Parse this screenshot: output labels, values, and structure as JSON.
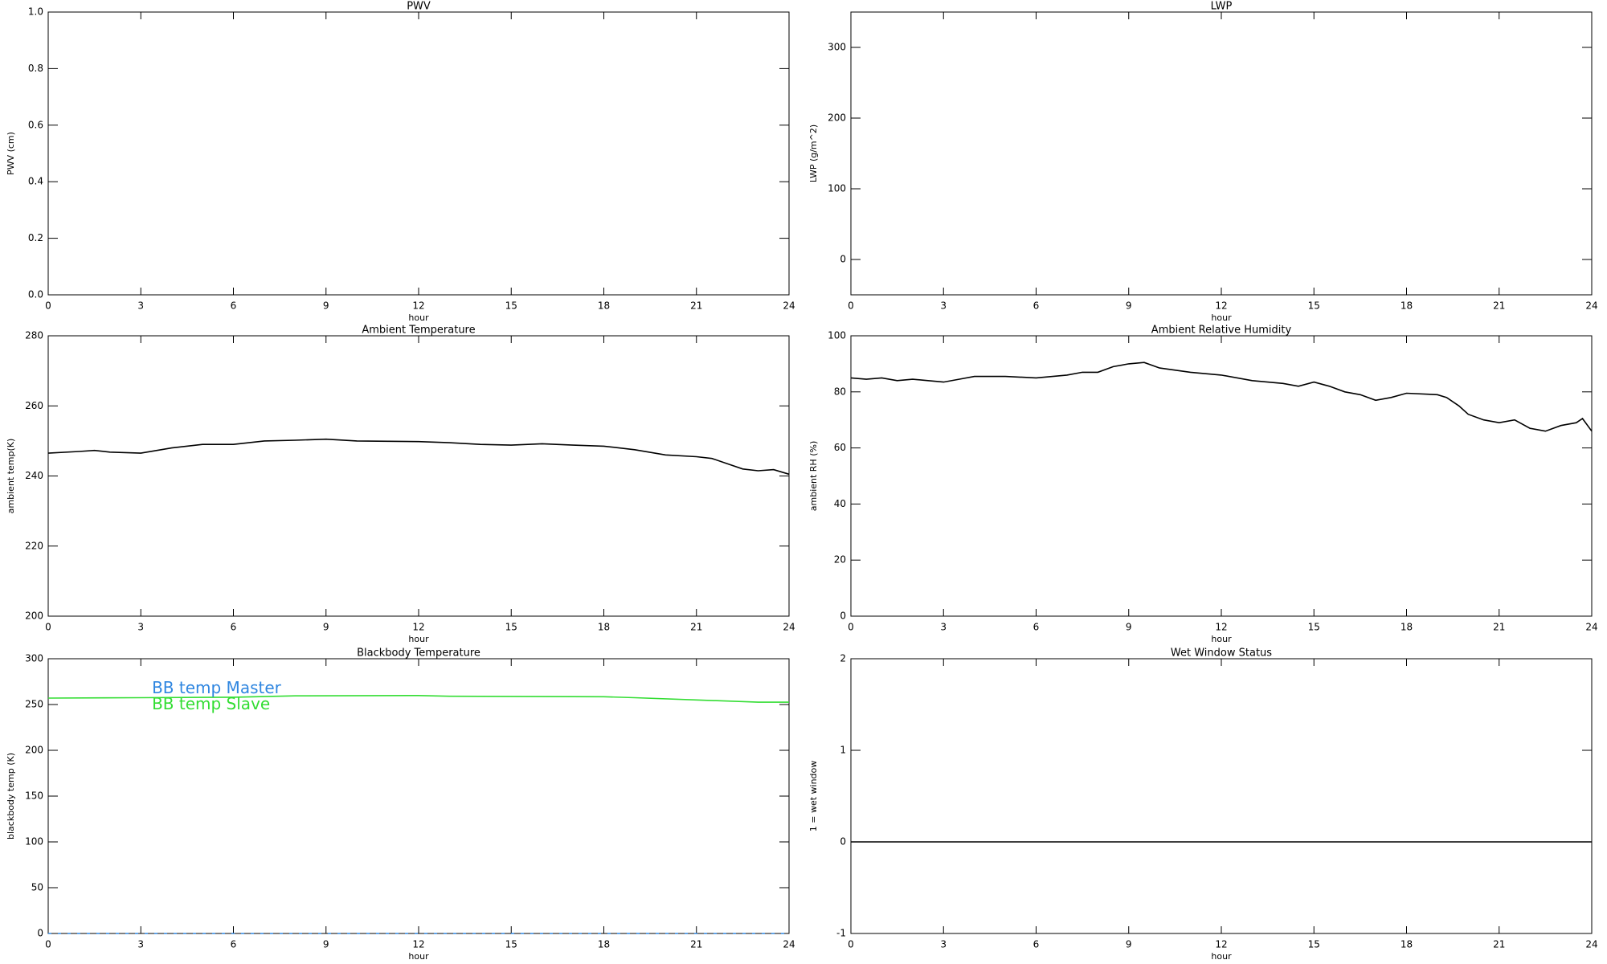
{
  "chart_data": [
    {
      "type": "line",
      "title": "PWV",
      "xlabel": "hour",
      "ylabel": "PWV (cm)",
      "xlim": [
        0,
        24
      ],
      "xticks": [
        0,
        3,
        6,
        9,
        12,
        15,
        18,
        21,
        24
      ],
      "ylim": [
        0,
        1
      ],
      "yticks": [
        {
          "value": 0,
          "label": "0.0"
        },
        0.2,
        0.4,
        0.6,
        0.8,
        {
          "value": 1,
          "label": "1.0"
        }
      ]
    },
    {
      "type": "line",
      "title": "LWP",
      "xlabel": "hour",
      "ylabel": "LWP (g/m^2)",
      "xlim": [
        0,
        24
      ],
      "xticks": [
        0,
        3,
        6,
        9,
        12,
        15,
        18,
        21,
        24
      ],
      "ylim": [
        -50,
        350
      ],
      "yticks": [
        0,
        100,
        200,
        300
      ]
    },
    {
      "type": "line",
      "title": "Ambient Temperature",
      "xlabel": "hour",
      "ylabel": "ambient temp(K)",
      "xlim": [
        0,
        24
      ],
      "xticks": [
        0,
        3,
        6,
        9,
        12,
        15,
        18,
        21,
        24
      ],
      "ylim": [
        200,
        280
      ],
      "yticks": [
        200,
        220,
        240,
        260,
        280
      ],
      "series": [
        {
          "color": "#000000",
          "x": [
            0,
            1,
            1.5,
            2,
            3,
            4,
            5,
            6,
            6.5,
            7,
            8,
            9,
            10,
            12,
            13,
            14,
            15,
            16,
            17,
            18,
            19,
            20,
            21,
            21.5,
            22,
            22.5,
            23,
            23.5,
            24
          ],
          "values": [
            246.5,
            247,
            247.3,
            246.8,
            246.5,
            248,
            249,
            249,
            249.5,
            250,
            250.2,
            250.5,
            250,
            249.8,
            249.5,
            249,
            248.8,
            249.2,
            248.8,
            248.5,
            247.5,
            246,
            245.5,
            245,
            243.5,
            242,
            241.5,
            241.8,
            240.5
          ]
        }
      ]
    },
    {
      "type": "line",
      "title": "Ambient Relative Humidity",
      "xlabel": "hour",
      "ylabel": "ambient RH (%)",
      "xlim": [
        0,
        24
      ],
      "xticks": [
        0,
        3,
        6,
        9,
        12,
        15,
        18,
        21,
        24
      ],
      "ylim": [
        0,
        100
      ],
      "yticks": [
        0,
        20,
        40,
        60,
        80,
        100
      ],
      "series": [
        {
          "color": "#000000",
          "x": [
            0,
            0.5,
            1,
            1.5,
            2,
            2.5,
            3,
            3.5,
            4,
            5,
            6,
            7,
            7.5,
            8,
            8.5,
            9,
            9.5,
            10,
            11,
            12,
            13,
            14,
            14.5,
            15,
            15.5,
            16,
            16.5,
            17,
            17.5,
            18,
            19,
            19.3,
            19.7,
            20,
            20.5,
            21,
            21.5,
            22,
            22.5,
            23,
            23.5,
            23.7,
            24
          ],
          "values": [
            85,
            84.5,
            85,
            84,
            84.5,
            84,
            83.5,
            84.5,
            85.5,
            85.5,
            85,
            86,
            87,
            87,
            89,
            90,
            90.5,
            88.5,
            87,
            86,
            84,
            83,
            82,
            83.5,
            82,
            80,
            79,
            77,
            78,
            79.5,
            79,
            78,
            75,
            72,
            70,
            69,
            70,
            67,
            66,
            68,
            69,
            70.5,
            66
          ]
        }
      ]
    },
    {
      "type": "line",
      "title": "Blackbody Temperature",
      "xlabel": "hour",
      "ylabel": "blackbody temp (K)",
      "xlim": [
        0,
        24
      ],
      "xticks": [
        0,
        3,
        6,
        9,
        12,
        15,
        18,
        21,
        24
      ],
      "ylim": [
        0,
        300
      ],
      "yticks": [
        0,
        50,
        100,
        150,
        200,
        250,
        300
      ],
      "legend": "upper left",
      "series": [
        {
          "name": "BB temp Master",
          "color": "#2f86e0",
          "dash": true,
          "x": [
            0,
            24
          ],
          "values": [
            0,
            0
          ]
        },
        {
          "name": "BB temp Slave",
          "color": "#33dd33",
          "x": [
            0,
            3,
            6,
            8,
            12,
            13,
            18,
            19,
            21,
            23,
            24
          ],
          "values": [
            257,
            257.5,
            258,
            259.5,
            259.8,
            259,
            258.5,
            257.5,
            255,
            252.5,
            252.5
          ]
        }
      ]
    },
    {
      "type": "line",
      "title": "Wet Window Status",
      "xlabel": "hour",
      "ylabel": "1 = wet window",
      "xlim": [
        0,
        24
      ],
      "xticks": [
        0,
        3,
        6,
        9,
        12,
        15,
        18,
        21,
        24
      ],
      "ylim": [
        -1,
        2
      ],
      "yticks": [
        -1,
        0,
        1,
        2
      ],
      "series": [
        {
          "color": "#000000",
          "x": [
            0,
            24
          ],
          "values": [
            0,
            0
          ]
        }
      ]
    }
  ]
}
